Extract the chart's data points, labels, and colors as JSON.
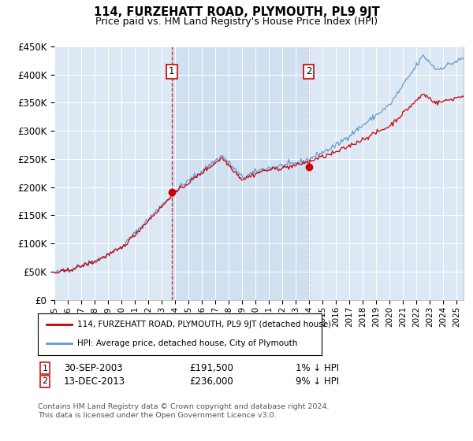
{
  "title": "114, FURZEHATT ROAD, PLYMOUTH, PL9 9JT",
  "subtitle": "Price paid vs. HM Land Registry's House Price Index (HPI)",
  "ylim": [
    0,
    450000
  ],
  "yticks": [
    0,
    50000,
    100000,
    150000,
    200000,
    250000,
    300000,
    350000,
    400000,
    450000
  ],
  "plot_bg_color": "#dce9f5",
  "sale1_year": 2003.75,
  "sale1_price": 191500,
  "sale1_date_str": "30-SEP-2003",
  "sale1_hpi_diff": "1% ↓ HPI",
  "sale2_year": 2013.958,
  "sale2_price": 236000,
  "sale2_date_str": "13-DEC-2013",
  "sale2_hpi_diff": "9% ↓ HPI",
  "legend_line1": "114, FURZEHATT ROAD, PLYMOUTH, PL9 9JT (detached house)",
  "legend_line2": "HPI: Average price, detached house, City of Plymouth",
  "footer": "Contains HM Land Registry data © Crown copyright and database right 2024.\nThis data is licensed under the Open Government Licence v3.0.",
  "line_color_red": "#cc0000",
  "line_color_blue": "#6699cc",
  "shade_color": "#ccddf0",
  "grid_color": "#ffffff",
  "xmin": 1995,
  "xmax": 2025.5
}
